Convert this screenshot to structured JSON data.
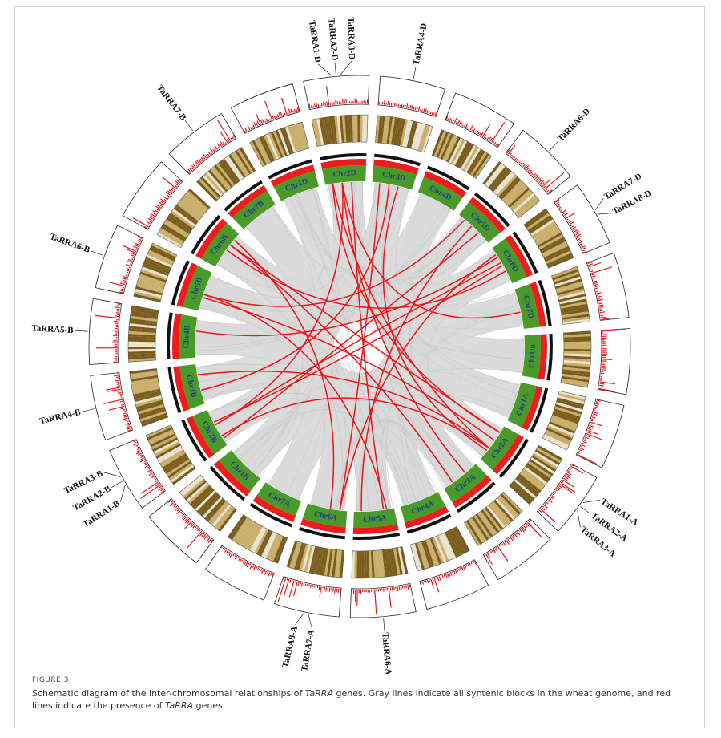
{
  "figure": {
    "number": "FIGURE 3",
    "caption_parts": [
      {
        "text": "Schematic diagram of the inter-chromosomal relationships of ",
        "italic": false
      },
      {
        "text": "TaRRA",
        "italic": true
      },
      {
        "text": " genes. Gray lines indicate all syntenic blocks in the wheat genome, and red lines indicate the presence of ",
        "italic": false
      },
      {
        "text": "TaRRA",
        "italic": true
      },
      {
        "text": " genes.",
        "italic": false
      }
    ]
  },
  "colors": {
    "green_track": "#4a9a2a",
    "red_track": "#ee1c1c",
    "black_track": "#111111",
    "heat_a": "#7a5c1c",
    "heat_b": "#c9ad6a",
    "heat_c": "#e9e2cf",
    "histogram": "#e8151b",
    "link_red": "#e8151b",
    "link_gray": "#d9d9d9",
    "chr_label": "#1f3c99"
  },
  "chromosomes": [
    {
      "name": "Chr2D"
    },
    {
      "name": "Chr3D"
    },
    {
      "name": "Chr4D"
    },
    {
      "name": "Chr5D"
    },
    {
      "name": "Chr6D"
    },
    {
      "name": "Chr7D"
    },
    {
      "name": "ChrUn"
    },
    {
      "name": "Chr1A"
    },
    {
      "name": "Chr2A"
    },
    {
      "name": "Chr3A"
    },
    {
      "name": "Chr4A"
    },
    {
      "name": "Chr5A"
    },
    {
      "name": "Chr6A"
    },
    {
      "name": "Chr7A"
    },
    {
      "name": "Chr1B"
    },
    {
      "name": "Chr2B"
    },
    {
      "name": "Chr3B"
    },
    {
      "name": "Chr4B"
    },
    {
      "name": "Chr5B"
    },
    {
      "name": "Chr6B"
    },
    {
      "name": "Chr7B"
    },
    {
      "name": "Chr1D"
    }
  ],
  "genes": [
    {
      "name": "TaRRA1-D",
      "chr": "Chr2D"
    },
    {
      "name": "TaRRA2-D",
      "chr": "Chr2D"
    },
    {
      "name": "TaRRA3-D",
      "chr": "Chr2D"
    },
    {
      "name": "TaRRA4-D",
      "chr": "Chr3D"
    },
    {
      "name": "TaRRA6-D",
      "chr": "Chr5D"
    },
    {
      "name": "TaRRA7-D",
      "chr": "Chr6D"
    },
    {
      "name": "TaRRA8-D",
      "chr": "Chr6D"
    },
    {
      "name": "TaRRA1-A",
      "chr": "Chr2A"
    },
    {
      "name": "TaRRA2-A",
      "chr": "Chr2A"
    },
    {
      "name": "TaRRA3-A",
      "chr": "Chr2A"
    },
    {
      "name": "TaRRA6-A",
      "chr": "Chr5A"
    },
    {
      "name": "TaRRA7-A",
      "chr": "Chr6A"
    },
    {
      "name": "TaRRA8-A",
      "chr": "Chr6A"
    },
    {
      "name": "TaRRA1-B",
      "chr": "Chr2B"
    },
    {
      "name": "TaRRA2-B",
      "chr": "Chr2B"
    },
    {
      "name": "TaRRA3-B",
      "chr": "Chr2B"
    },
    {
      "name": "TaRRA4-B",
      "chr": "Chr3B"
    },
    {
      "name": "TaRRA5-B",
      "chr": "Chr4B"
    },
    {
      "name": "TaRRA6-B",
      "chr": "Chr5B"
    },
    {
      "name": "TaRRA7-B",
      "chr": "Chr7B"
    }
  ],
  "red_links": [
    [
      "Chr2D",
      "Chr2A"
    ],
    [
      "Chr2D",
      "Chr2B"
    ],
    [
      "Chr2D",
      "Chr5A"
    ],
    [
      "Chr2D",
      "Chr2A"
    ],
    [
      "Chr3D",
      "Chr3B"
    ],
    [
      "Chr3D",
      "Chr2A"
    ],
    [
      "Chr5D",
      "Chr5B"
    ],
    [
      "Chr5D",
      "Chr5A"
    ],
    [
      "Chr6D",
      "Chr6B"
    ],
    [
      "Chr6D",
      "Chr6A"
    ],
    [
      "Chr6D",
      "Chr2B"
    ],
    [
      "Chr2A",
      "Chr2B"
    ],
    [
      "Chr2A",
      "Chr6B"
    ],
    [
      "Chr2A",
      "Chr5B"
    ],
    [
      "Chr2A",
      "Chr3B"
    ],
    [
      "Chr5A",
      "Chr5B"
    ],
    [
      "Chr6A",
      "Chr6B"
    ],
    [
      "Chr2B",
      "Chr6D"
    ],
    [
      "Chr3D",
      "Chr6A"
    ],
    [
      "Chr2D",
      "Chr7D"
    ],
    [
      "Chr4B",
      "Chr6D"
    ],
    [
      "Chr2B",
      "Chr5D"
    ],
    [
      "Chr2D",
      "Chr3A"
    ],
    [
      "Chr6B",
      "Chr3A"
    ]
  ]
}
